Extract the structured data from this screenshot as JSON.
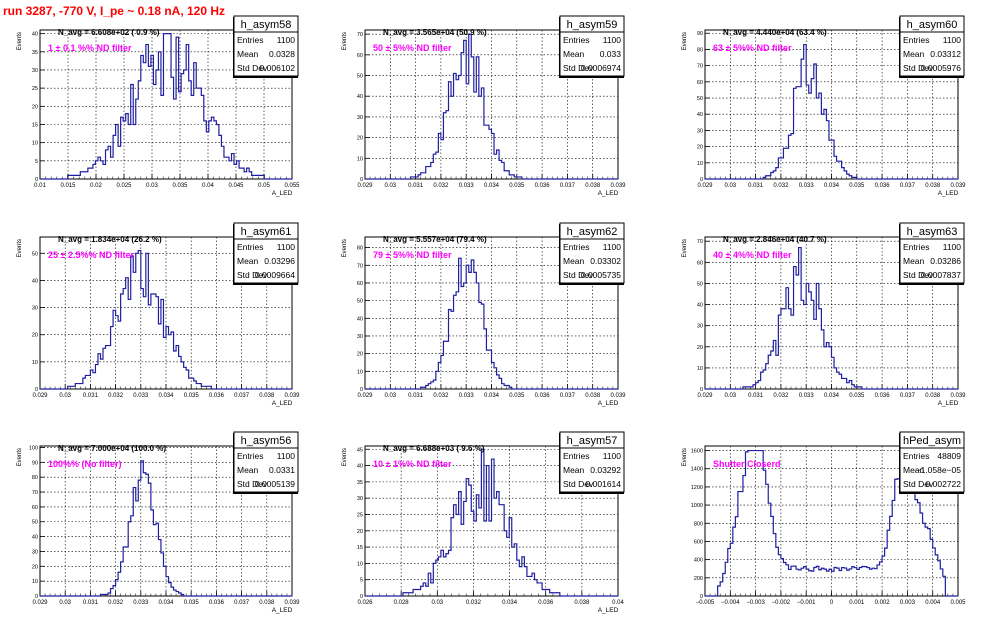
{
  "page": {
    "title": "run 3287,  -770 V, I_pe ~ 0.18 nA, 120 Hz"
  },
  "colors": {
    "histogram": "#1f1fa0",
    "annotation": "#ff00ff",
    "title": "#ff0000",
    "grid": "#000000"
  },
  "chart_data": [
    {
      "type": "bar",
      "name": "h_asym58",
      "stats": {
        "Entries": "1100",
        "Mean": "0.0328",
        "Std Dev": "0.006102"
      },
      "navg": "N_avg = 6.608e+02 ( 0.9 %)",
      "annotation": "1 ± 0.1 %% ND filter",
      "xlabel": "A_LED",
      "ylabel": "Events",
      "xlim": [
        0.01,
        0.055
      ],
      "ylim": [
        0,
        41
      ],
      "xticks": [
        "0.01",
        "0.015",
        "0.02",
        "0.025",
        "0.03",
        "0.035",
        "0.04",
        "0.045",
        "0.05",
        "0.055"
      ],
      "yticks": [
        0,
        5,
        10,
        15,
        20,
        25,
        30,
        35,
        40
      ],
      "mean": 0.0328,
      "sigma": 0.006102,
      "peak": 34,
      "noise": 0.35,
      "seed": 58
    },
    {
      "type": "bar",
      "name": "h_asym59",
      "stats": {
        "Entries": "1100",
        "Mean": "0.033",
        "Std Dev": "0.0006974"
      },
      "navg": "N_avg = 3.565e+04 (50.9 %)",
      "annotation": "50 ± 5%% ND filter",
      "xlabel": "A_LED",
      "ylabel": "Events",
      "xlim": [
        0.029,
        0.039
      ],
      "ylim": [
        0,
        72
      ],
      "xticks": [
        "0.029",
        "0.03",
        "0.031",
        "0.032",
        "0.033",
        "0.034",
        "0.035",
        "0.036",
        "0.037",
        "0.038",
        "0.039"
      ],
      "yticks": [
        0,
        10,
        20,
        30,
        40,
        50,
        60,
        70
      ],
      "mean": 0.033,
      "sigma": 0.0006974,
      "peak": 60,
      "noise": 0.25,
      "seed": 59
    },
    {
      "type": "bar",
      "name": "h_asym60",
      "stats": {
        "Entries": "1100",
        "Mean": "0.03312",
        "Std Dev": "0.0005976"
      },
      "navg": "N_avg = 4.440e+04 (63.4 %)",
      "annotation": "63 ± 5%% ND filter",
      "xlabel": "A_LED",
      "ylabel": "Events",
      "xlim": [
        0.029,
        0.039
      ],
      "ylim": [
        0,
        92
      ],
      "xticks": [
        "0.029",
        "0.03",
        "0.031",
        "0.032",
        "0.033",
        "0.034",
        "0.035",
        "0.036",
        "0.037",
        "0.038",
        "0.039"
      ],
      "yticks": [
        0,
        10,
        20,
        30,
        40,
        50,
        60,
        70,
        80,
        90
      ],
      "mean": 0.03312,
      "sigma": 0.0005976,
      "peak": 72,
      "noise": 0.28,
      "seed": 60
    },
    {
      "type": "bar",
      "name": "h_asym61",
      "stats": {
        "Entries": "1100",
        "Mean": "0.03296",
        "Std Dev": "0.0009664"
      },
      "navg": "N_avg = 1.834e+04 (26.2 %)",
      "annotation": "25 ± 2.5%% ND filter",
      "xlabel": "A_LED",
      "ylabel": "Events",
      "xlim": [
        0.029,
        0.039
      ],
      "ylim": [
        0,
        56
      ],
      "xticks": [
        "0.029",
        "0.03",
        "0.031",
        "0.032",
        "0.033",
        "0.034",
        "0.035",
        "0.036",
        "0.037",
        "0.038",
        "0.039"
      ],
      "yticks": [
        0,
        10,
        20,
        30,
        40,
        50
      ],
      "mean": 0.03296,
      "sigma": 0.0009664,
      "peak": 42,
      "noise": 0.25,
      "seed": 61
    },
    {
      "type": "bar",
      "name": "h_asym62",
      "stats": {
        "Entries": "1100",
        "Mean": "0.03302",
        "Std Dev": "0.0005735"
      },
      "navg": "N_avg = 5.557e+04 (79.4 %)",
      "annotation": "79 ± 5%% ND filter",
      "xlabel": "A_LED",
      "ylabel": "Events",
      "xlim": [
        0.029,
        0.039
      ],
      "ylim": [
        0,
        86
      ],
      "xticks": [
        "0.029",
        "0.03",
        "0.031",
        "0.032",
        "0.033",
        "0.034",
        "0.035",
        "0.036",
        "0.037",
        "0.038",
        "0.039"
      ],
      "yticks": [
        0,
        10,
        20,
        30,
        40,
        50,
        60,
        70,
        80
      ],
      "mean": 0.03302,
      "sigma": 0.0005735,
      "peak": 74,
      "noise": 0.2,
      "seed": 62
    },
    {
      "type": "bar",
      "name": "h_asym63",
      "stats": {
        "Entries": "1100",
        "Mean": "0.03286",
        "Std Dev": "0.0007837"
      },
      "navg": "N_avg = 2.846e+04 (40.7 %)",
      "annotation": "40 ± 4%% ND filter",
      "xlabel": "A_LED",
      "ylabel": "Events",
      "xlim": [
        0.029,
        0.039
      ],
      "ylim": [
        0,
        72
      ],
      "xticks": [
        "0.029",
        "0.03",
        "0.031",
        "0.032",
        "0.033",
        "0.034",
        "0.035",
        "0.036",
        "0.037",
        "0.038",
        "0.039"
      ],
      "yticks": [
        0,
        10,
        20,
        30,
        40,
        50,
        60,
        70
      ],
      "mean": 0.03286,
      "sigma": 0.0007837,
      "peak": 52,
      "noise": 0.32,
      "seed": 63
    },
    {
      "type": "bar",
      "name": "h_asym56",
      "stats": {
        "Entries": "1100",
        "Mean": "0.0331",
        "Std Dev": "0.0005139"
      },
      "navg": "N_avg = 7.000e+04 (100.0 %)",
      "annotation": "100%% (No filter)",
      "xlabel": "A_LED",
      "ylabel": "Events",
      "xlim": [
        0.029,
        0.039
      ],
      "ylim": [
        0,
        101
      ],
      "xticks": [
        "0.029",
        "0.03",
        "0.031",
        "0.032",
        "0.033",
        "0.034",
        "0.035",
        "0.036",
        "0.037",
        "0.038",
        "0.039"
      ],
      "yticks": [
        0,
        10,
        20,
        30,
        40,
        50,
        60,
        70,
        80,
        90,
        100
      ],
      "mean": 0.0331,
      "sigma": 0.0005139,
      "peak": 84,
      "noise": 0.2,
      "seed": 56
    },
    {
      "type": "bar",
      "name": "h_asym57",
      "stats": {
        "Entries": "1100",
        "Mean": "0.03292",
        "Std Dev": "0.001614"
      },
      "navg": "N_avg = 6.688e+03 ( 9.6 %)",
      "annotation": "10 ± 1%% ND filter",
      "xlabel": "A_LED",
      "ylabel": "Events",
      "xlim": [
        0.026,
        0.041
      ],
      "ylim": [
        0,
        46
      ],
      "xticks": [
        "0.026",
        "0.028",
        "0.03",
        "0.032",
        "0.034",
        "0.036",
        "0.038",
        "0.04"
      ],
      "yticks": [
        0,
        5,
        10,
        15,
        20,
        25,
        30,
        35,
        40,
        45
      ],
      "mean": 0.03292,
      "sigma": 0.001614,
      "peak": 34,
      "noise": 0.35,
      "seed": 57
    },
    {
      "type": "bar",
      "name": "hPed_asym",
      "stats": {
        "Entries": "48809",
        "Mean": "−1.058e−05",
        "Std Dev": "0.002722"
      },
      "navg": "",
      "annotation": "Shutter Closerd",
      "xlabel": "",
      "ylabel": "Events",
      "xlim": [
        -0.005,
        0.005
      ],
      "ylim": [
        0,
        1650
      ],
      "xticks": [
        "−0.005",
        "−0.004",
        "−0.003",
        "−0.002",
        "−0.001",
        "0",
        "0.001",
        "0.002",
        "0.003",
        "0.004",
        "0.005"
      ],
      "yticks": [
        0,
        200,
        400,
        600,
        800,
        1000,
        1200,
        1400,
        1600
      ],
      "pedestal": true,
      "seed": 99
    }
  ]
}
